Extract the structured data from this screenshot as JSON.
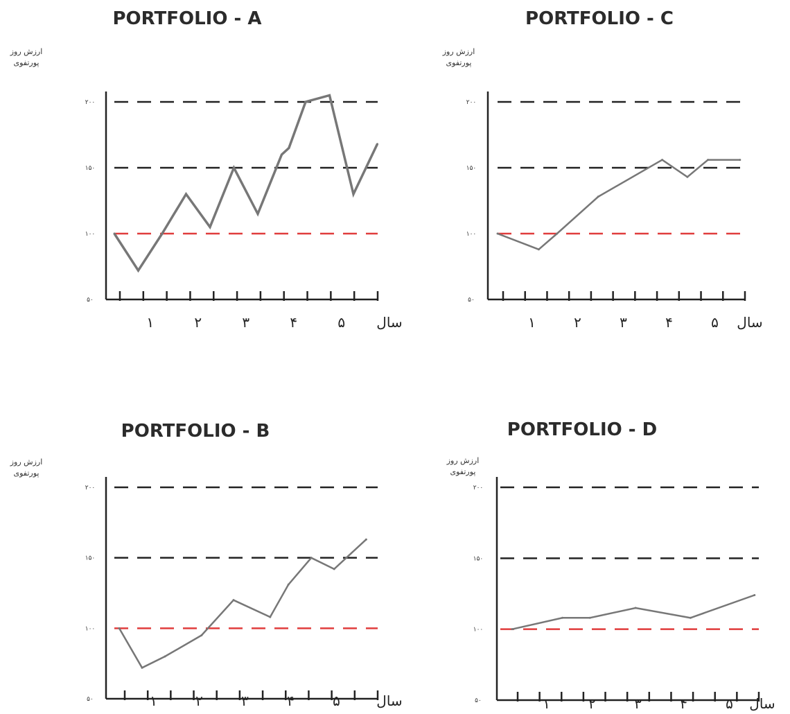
{
  "chart_data": [
    {
      "type": "line",
      "title": "PORTFOLIO - A",
      "ylabel": "ارزش روز پورتفوی",
      "xlabel": "سال",
      "x": [
        0,
        0.5,
        1,
        1.5,
        2,
        2.5,
        3,
        3.5,
        3.65,
        4,
        4.5,
        5,
        5.5
      ],
      "y": [
        100,
        72,
        100,
        130,
        105,
        150,
        115,
        160,
        165,
        200,
        205,
        130,
        168
      ],
      "ylim": [
        50,
        200
      ],
      "yticks": [
        50,
        100,
        150,
        200
      ],
      "ytick_labels": [
        "۵۰",
        "۱۰۰",
        "۱۵۰",
        "۲۰۰"
      ],
      "xticks": [
        1,
        2,
        3,
        4,
        5
      ],
      "xtick_labels": [
        "۱",
        "۲",
        "۳",
        "۴",
        "۵"
      ],
      "reference_lines": [
        {
          "value": 200,
          "color": "#222222"
        },
        {
          "value": 150,
          "color": "#222222"
        },
        {
          "value": 100,
          "color": "#e03c3c"
        }
      ],
      "series_color": "#777777"
    },
    {
      "type": "line",
      "title": "PORTFOLIO - C",
      "ylabel": "ارزش روز پورتفوی",
      "xlabel": "سال",
      "x": [
        0,
        0.9,
        1.3,
        2.2,
        3.6,
        4.15,
        4.6,
        5.3
      ],
      "y": [
        100,
        88,
        100,
        128,
        156,
        143,
        156,
        156
      ],
      "ylim": [
        50,
        200
      ],
      "yticks": [
        50,
        100,
        150,
        200
      ],
      "ytick_labels": [
        "۵۰",
        "۱۰۰",
        "۱۵۰",
        "۲۰۰"
      ],
      "xticks": [
        1,
        2,
        3,
        4,
        5
      ],
      "xtick_labels": [
        "۱",
        "۲",
        "۳",
        "۴",
        "۵"
      ],
      "reference_lines": [
        {
          "value": 200,
          "color": "#222222"
        },
        {
          "value": 150,
          "color": "#222222"
        },
        {
          "value": 100,
          "color": "#e03c3c"
        }
      ],
      "series_color": "#777777"
    },
    {
      "type": "line",
      "title": "PORTFOLIO - B",
      "ylabel": "ارزش روز پورتفوی",
      "xlabel": "سال",
      "x": [
        0,
        0.5,
        1,
        1.8,
        2.5,
        3.3,
        3.7,
        4.2,
        4.7,
        5.4
      ],
      "y": [
        100,
        72,
        80,
        95,
        120,
        108,
        131,
        150,
        142,
        163
      ],
      "ylim": [
        50,
        200
      ],
      "yticks": [
        50,
        100,
        150,
        200
      ],
      "ytick_labels": [
        "۵۰",
        "۱۰۰",
        "۱۵۰",
        "۲۰۰"
      ],
      "xticks": [
        1,
        2,
        3,
        4,
        5
      ],
      "xtick_labels": [
        "۱",
        "۲",
        "۳",
        "۴",
        "۵"
      ],
      "reference_lines": [
        {
          "value": 200,
          "color": "#222222"
        },
        {
          "value": 150,
          "color": "#222222"
        },
        {
          "value": 100,
          "color": "#e03c3c"
        }
      ],
      "series_color": "#777777"
    },
    {
      "type": "line",
      "title": "PORTFOLIO - D",
      "ylabel": "ارزش روز پورتفوی",
      "xlabel": "سال",
      "x": [
        0,
        1.1,
        1.7,
        2.7,
        3.9,
        5.3
      ],
      "y": [
        100,
        108,
        108,
        115,
        108,
        124
      ],
      "ylim": [
        50,
        200
      ],
      "yticks": [
        50,
        100,
        150,
        200
      ],
      "ytick_labels": [
        "۵۰",
        "۱۰۰",
        "۱۵۰",
        "۲۰۰"
      ],
      "xticks": [
        1,
        2,
        3,
        4,
        5
      ],
      "xtick_labels": [
        "۱",
        "۲",
        "۳",
        "۴",
        "۵"
      ],
      "reference_lines": [
        {
          "value": 200,
          "color": "#222222"
        },
        {
          "value": 150,
          "color": "#222222"
        },
        {
          "value": 100,
          "color": "#e03c3c"
        }
      ],
      "series_color": "#777777"
    }
  ]
}
